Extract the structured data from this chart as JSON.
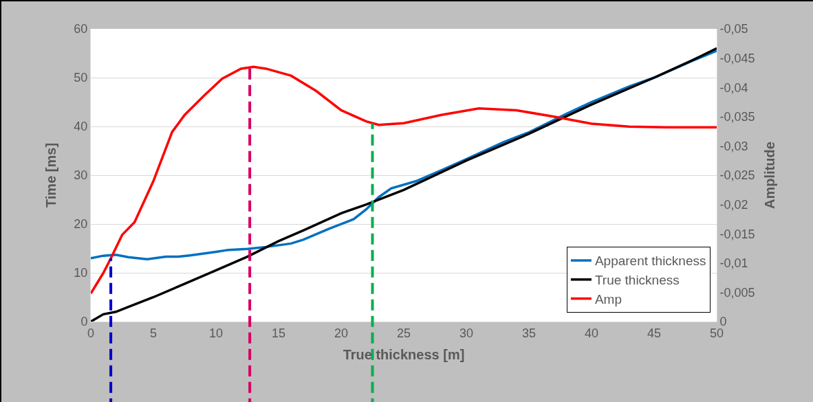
{
  "chart_data": {
    "type": "line",
    "xlabel": "True thickness [m]",
    "ylabel": "Time [ms]",
    "y2label": "Amplitude",
    "xlim": [
      0,
      50
    ],
    "xticks": [
      0,
      5,
      10,
      15,
      20,
      25,
      30,
      35,
      40,
      45,
      50
    ],
    "ylim": [
      0,
      60
    ],
    "yticks": [
      0,
      10,
      20,
      30,
      40,
      50,
      60
    ],
    "y2lim": [
      0,
      -0.05
    ],
    "y2ticks": [
      {
        "value": 0,
        "label": "0"
      },
      {
        "value": -0.005,
        "label": "-0,005"
      },
      {
        "value": -0.01,
        "label": "-0,01"
      },
      {
        "value": -0.015,
        "label": "-0,015"
      },
      {
        "value": -0.02,
        "label": "-0,02"
      },
      {
        "value": -0.025,
        "label": "-0,025"
      },
      {
        "value": -0.03,
        "label": "-0,03"
      },
      {
        "value": -0.035,
        "label": "-0,035"
      },
      {
        "value": -0.04,
        "label": "-0,04"
      },
      {
        "value": -0.045,
        "label": "-0,045"
      },
      {
        "value": -0.05,
        "label": "-0,05"
      }
    ],
    "grid": "y",
    "legend": "bottom right",
    "marker": "none",
    "line_style": "solid",
    "series": [
      {
        "name": "Apparent thickness",
        "color": "#0070c0",
        "x": [
          0,
          1,
          2,
          3,
          4.5,
          6,
          7,
          8,
          10,
          11,
          12.5,
          14,
          16,
          17,
          19,
          21,
          22,
          23,
          24,
          26,
          28,
          30,
          33,
          35,
          38,
          40,
          43,
          45,
          48,
          50
        ],
        "values": [
          13,
          13.5,
          13.7,
          13.2,
          12.8,
          13.3,
          13.3,
          13.6,
          14.3,
          14.7,
          14.9,
          15.3,
          16,
          16.8,
          19,
          21,
          23,
          25.5,
          27.3,
          28.8,
          31,
          33.3,
          36.8,
          38.8,
          42.6,
          45,
          48.2,
          50,
          53.4,
          55.5
        ]
      },
      {
        "name": "True thickness",
        "color": "#000000",
        "x": [
          0,
          1,
          2,
          3,
          5,
          7,
          10,
          12.5,
          15,
          17,
          20,
          22,
          25,
          30,
          35,
          40,
          45,
          48,
          50
        ],
        "values": [
          0,
          1.5,
          2,
          3,
          5,
          7.2,
          10.5,
          13.3,
          16.5,
          18.7,
          22.2,
          24,
          27,
          33,
          38.5,
          44.5,
          50,
          53.5,
          56
        ]
      },
      {
        "name": "Amp",
        "color": "#ff0000",
        "axis": "y2",
        "x": [
          0,
          1,
          1.6,
          2.5,
          3.5,
          5,
          6.5,
          7.5,
          9,
          10.5,
          12,
          13,
          14,
          16,
          18,
          20,
          22,
          23,
          25,
          28,
          31,
          34,
          37,
          40,
          43,
          46,
          50
        ],
        "values": [
          -0.0048,
          -0.0083,
          -0.0108,
          -0.0148,
          -0.017,
          -0.024,
          -0.0324,
          -0.0353,
          -0.0385,
          -0.0415,
          -0.0432,
          -0.0435,
          -0.0432,
          -0.042,
          -0.0394,
          -0.0361,
          -0.0342,
          -0.0336,
          -0.0339,
          -0.0353,
          -0.0364,
          -0.0361,
          -0.035,
          -0.0338,
          -0.0333,
          -0.0332,
          -0.0332
        ]
      }
    ],
    "ref_lines": [
      {
        "axis": "x",
        "value": 1.6,
        "color": "#0000cc",
        "line_style": "dashed"
      },
      {
        "axis": "x",
        "value": 12.7,
        "color": "#d6005f",
        "line_style": "dashed"
      },
      {
        "axis": "x",
        "value": 22.5,
        "color": "#00b050",
        "line_style": "dashed"
      }
    ]
  }
}
